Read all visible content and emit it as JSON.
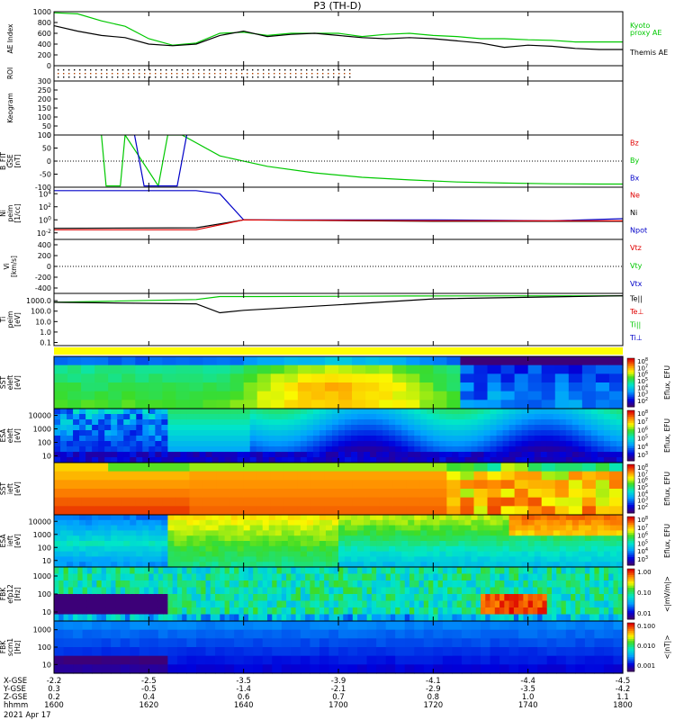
{
  "title": "P3 (TH-D)",
  "colors": {
    "red": "#e00000",
    "green": "#00c800",
    "blue": "#0000c8",
    "black": "#000000"
  },
  "chart_data": {
    "type": "line",
    "date_label": "2021 Apr 17",
    "time_axis": {
      "range": [
        "16:00",
        "18:00"
      ],
      "ticks": [
        {
          "t": "16:00",
          "x": "-2.2",
          "y": "0.3",
          "z": "0.2",
          "hhmm": "1600"
        },
        {
          "t": "16:20",
          "x": "-2.5",
          "y": "-0.5",
          "z": "0.4",
          "hhmm": "1620"
        },
        {
          "t": "16:40",
          "x": "-3.5",
          "y": "-1.4",
          "z": "0.6",
          "hhmm": "1640"
        },
        {
          "t": "17:00",
          "x": "-3.9",
          "y": "-2.1",
          "z": "0.7",
          "hhmm": "1700"
        },
        {
          "t": "17:20",
          "x": "-4.1",
          "y": "-2.9",
          "z": "0.8",
          "hhmm": "1720"
        },
        {
          "t": "17:40",
          "x": "-4.4",
          "y": "-3.5",
          "z": "1.0",
          "hhmm": "1740"
        },
        {
          "t": "18:00",
          "x": "-4.5",
          "y": "-4.2",
          "z": "1.1",
          "hhmm": "1800"
        }
      ],
      "row_labels": [
        "X-GSE",
        "Y-GSE",
        "Z-GSE",
        "hhmm"
      ]
    },
    "panels": [
      {
        "id": "ae",
        "ylabel": "AE Index",
        "ylim": [
          0,
          1000
        ],
        "yticks": [
          "0",
          "200",
          "400",
          "600",
          "800",
          "1000"
        ],
        "legend": [
          {
            "text": "Kyoto\nproxy AE",
            "color": "#00c800"
          },
          {
            "text": "Themis AE",
            "color": "#000000"
          }
        ],
        "series": [
          {
            "name": "Kyoto proxy AE",
            "color": "#00c800",
            "x": [
              "16:00",
              "16:05",
              "16:10",
              "16:15",
              "16:20",
              "16:25",
              "16:30",
              "16:35",
              "16:40",
              "16:45",
              "16:50",
              "16:55",
              "17:00",
              "17:05",
              "17:10",
              "17:15",
              "17:20",
              "17:25",
              "17:30",
              "17:35",
              "17:40",
              "17:45",
              "17:50",
              "17:55",
              "18:00"
            ],
            "values": [
              980,
              960,
              830,
              730,
              500,
              380,
              420,
              600,
              620,
              560,
              600,
              600,
              600,
              540,
              580,
              600,
              560,
              540,
              500,
              500,
              480,
              470,
              440,
              440,
              440
            ]
          },
          {
            "name": "Themis AE",
            "color": "#000000",
            "x": [
              "16:00",
              "16:05",
              "16:10",
              "16:15",
              "16:20",
              "16:25",
              "16:30",
              "16:35",
              "16:40",
              "16:45",
              "16:50",
              "16:55",
              "17:00",
              "17:05",
              "17:10",
              "17:15",
              "17:20",
              "17:25",
              "17:30",
              "17:35",
              "17:40",
              "17:45",
              "17:50",
              "17:55",
              "18:00"
            ],
            "values": [
              740,
              640,
              560,
              520,
              400,
              370,
              400,
              560,
              640,
              540,
              580,
              600,
              560,
              520,
              500,
              520,
              500,
              460,
              420,
              340,
              380,
              360,
              320,
              300,
              300
            ]
          }
        ]
      },
      {
        "id": "roi",
        "ylabel": "ROI"
      },
      {
        "id": "keogram",
        "ylabel": "Keogram",
        "ylim": [
          0,
          300
        ],
        "yticks": [
          "0",
          "50",
          "100",
          "150",
          "200",
          "250",
          "300"
        ]
      },
      {
        "id": "bfit",
        "ylabel": "B_FIT\nGSE\n[nT]",
        "ylim": [
          -100,
          100
        ],
        "yticks": [
          "-100",
          "-50",
          "0",
          "50",
          "100"
        ],
        "legend": [
          {
            "text": "Bz",
            "color": "#e00000"
          },
          {
            "text": "By",
            "color": "#00c800"
          },
          {
            "text": "Bx",
            "color": "#0000c8"
          }
        ],
        "series": [
          {
            "name": "By",
            "color": "#00c800",
            "x": [
              "16:10",
              "16:11",
              "16:14",
              "16:15",
              "16:22",
              "16:24",
              "16:27",
              "16:35",
              "16:45",
              "16:55",
              "17:05",
              "17:15",
              "17:25",
              "17:35",
              "17:45",
              "17:55",
              "18:00"
            ],
            "values": [
              100,
              -95,
              -95,
              100,
              -95,
              100,
              100,
              20,
              -20,
              -45,
              -62,
              -72,
              -80,
              -84,
              -87,
              -88,
              -88
            ]
          },
          {
            "name": "Bx",
            "color": "#0000c8",
            "x": [
              "16:17",
              "16:19",
              "16:21",
              "16:24",
              "16:26",
              "16:28"
            ],
            "values": [
              100,
              -95,
              -95,
              -95,
              -95,
              100
            ]
          }
        ]
      },
      {
        "id": "ni",
        "ylabel": "Ni\npeim\n[1/cc]",
        "yscale": "log",
        "yticks": [
          "10^-2",
          "10^0",
          "10^2",
          "10^4"
        ],
        "legend": [
          {
            "text": "Ne",
            "color": "#e00000"
          },
          {
            "text": "Ni",
            "color": "#000000"
          },
          {
            "text": "Npot",
            "color": "#0000c8"
          }
        ],
        "series": [
          {
            "name": "Npot",
            "color": "#0000c8",
            "x": [
              "16:00",
              "16:30",
              "16:35",
              "16:40",
              "17:20",
              "17:45",
              "18:00"
            ],
            "values": [
              30000,
              30000,
              10000,
              1,
              1,
              0.7,
              1.5
            ]
          },
          {
            "name": "Ni",
            "color": "#000000",
            "x": [
              "16:00",
              "16:30",
              "16:40",
              "17:20",
              "18:00"
            ],
            "values": [
              0.05,
              0.06,
              1,
              0.6,
              0.6
            ]
          },
          {
            "name": "Ne",
            "color": "#e00000",
            "x": [
              "16:00",
              "16:30",
              "16:40",
              "17:20",
              "18:00"
            ],
            "values": [
              0.03,
              0.03,
              1,
              0.7,
              0.7
            ]
          }
        ]
      },
      {
        "id": "vi",
        "ylabel": "Vi\n[km/s]",
        "ylim": [
          -500,
          500
        ],
        "yticks": [
          "-400",
          "-200",
          "0",
          "200",
          "400"
        ],
        "legend": [
          {
            "text": "Vtz",
            "color": "#e00000"
          },
          {
            "text": "Vty",
            "color": "#00c800"
          },
          {
            "text": "Vtx",
            "color": "#0000c8"
          }
        ]
      },
      {
        "id": "ti",
        "ylabel": "Ti\npeim\n[eV]",
        "yscale": "log",
        "yticks": [
          "0.1",
          "1.0",
          "10.0",
          "100.0",
          "1000.0"
        ],
        "legend": [
          {
            "text": "Te||",
            "color": "#000000"
          },
          {
            "text": "Te⊥",
            "color": "#e00000"
          },
          {
            "text": "Ti||",
            "color": "#00c800"
          },
          {
            "text": "Ti⊥",
            "color": "#0000c8"
          }
        ],
        "series": [
          {
            "name": "Ti||",
            "color": "#00c800",
            "x": [
              "16:00",
              "16:30",
              "16:35",
              "16:45",
              "17:15",
              "18:00"
            ],
            "values": [
              700,
              1300,
              2500,
              2500,
              2800,
              3000
            ]
          },
          {
            "name": "Te||",
            "color": "#000000",
            "x": [
              "16:00",
              "16:30",
              "16:35",
              "16:40",
              "17:00",
              "17:20",
              "18:00"
            ],
            "values": [
              700,
              500,
              70,
              120,
              400,
              1500,
              3000
            ]
          }
        ]
      },
      {
        "id": "sst-e",
        "ylabel": "SST\neleft\n[eV]",
        "colorbar_label": "Eflux, EFU",
        "type": "heatmap",
        "cb_ticks": [
          "10^8",
          "10^7",
          "10^6",
          "10^5",
          "10^4",
          "10^3",
          "10^2"
        ]
      },
      {
        "id": "esa-e",
        "ylabel": "ESA\neleft\n[eV]",
        "yticks": [
          "10",
          "100",
          "1000",
          "10000"
        ],
        "colorbar_label": "Eflux, EFU",
        "type": "heatmap",
        "cb_ticks": [
          "10^8",
          "10^7",
          "10^6",
          "10^5",
          "10^4",
          "10^3"
        ]
      },
      {
        "id": "sst-i",
        "ylabel": "SST\nieft\n[eV]",
        "colorbar_label": "Eflux, EFU",
        "type": "heatmap",
        "cb_ticks": [
          "10^8",
          "10^7",
          "10^6",
          "10^5",
          "10^4",
          "10^3",
          "10^2"
        ]
      },
      {
        "id": "esa-i",
        "ylabel": "ESA\nieft\n[eV]",
        "yticks": [
          "10",
          "100",
          "1000",
          "10000"
        ],
        "colorbar_label": "Eflux, EFU",
        "type": "heatmap",
        "cb_ticks": [
          "10^8",
          "10^7",
          "10^6",
          "10^5",
          "10^4",
          "10^3"
        ]
      },
      {
        "id": "fbk-e",
        "ylabel": "FBK\nefp12\n[Hz]",
        "yticks": [
          "10",
          "100",
          "1000"
        ],
        "colorbar_label": "<|mV/m|>",
        "type": "heatmap",
        "cb_ticks": [
          "1.00",
          "0.10",
          "0.01"
        ]
      },
      {
        "id": "fbk-b",
        "ylabel": "FBK\nscm1\n[Hz]",
        "yticks": [
          "10",
          "100",
          "1000"
        ],
        "colorbar_label": "<|nT|>",
        "type": "heatmap",
        "cb_ticks": [
          "0.100",
          "0.010",
          "0.001"
        ]
      }
    ]
  }
}
